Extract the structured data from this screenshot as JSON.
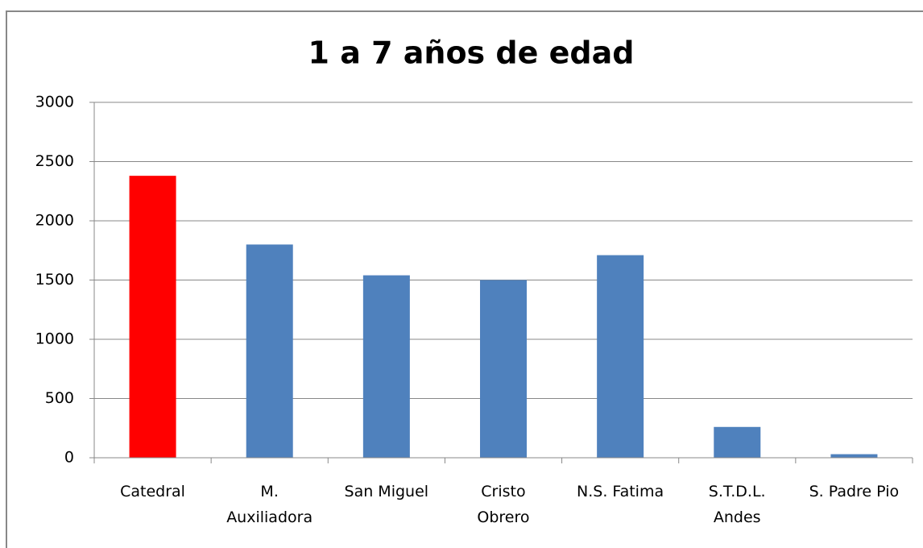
{
  "chart_data": {
    "type": "bar",
    "title": "1 a 7 años de edad",
    "categories": [
      "Catedral",
      "M.\nAuxiliadora",
      "San Miguel",
      "Cristo\nObrero",
      "N.S. Fatima",
      "S.T.D.L.\nAndes",
      "S. Padre Pio"
    ],
    "values": [
      2380,
      1800,
      1540,
      1500,
      1710,
      260,
      30
    ],
    "colors": [
      "#ff0000",
      "#4f81bd",
      "#4f81bd",
      "#4f81bd",
      "#4f81bd",
      "#4f81bd",
      "#4f81bd"
    ],
    "ylim": [
      0,
      3000
    ],
    "yticks": [
      0,
      500,
      1000,
      1500,
      2000,
      2500,
      3000
    ],
    "grid": true
  }
}
